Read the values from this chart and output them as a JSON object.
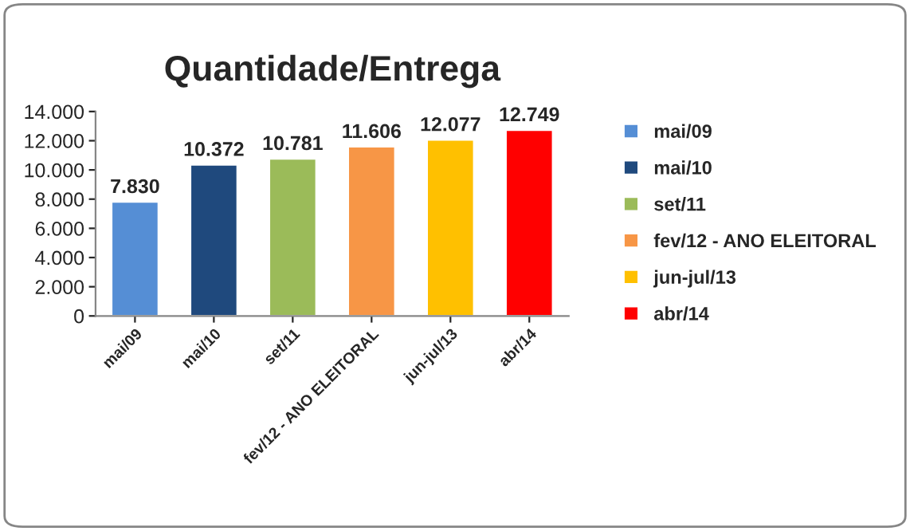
{
  "chart_data": {
    "type": "bar",
    "title": "Quantidade/Entrega",
    "categories": [
      "mai/09",
      "mai/10",
      "set/11",
      "fev/12 - ANO ELEITORAL",
      "jun-jul/13",
      "abr/14"
    ],
    "series": [
      {
        "name": "mai/09",
        "color": "#558ed5",
        "values": [
          7830,
          null,
          null,
          null,
          null,
          null
        ],
        "value_labels": [
          "7.830",
          null,
          null,
          null,
          null,
          null
        ]
      },
      {
        "name": "mai/10",
        "color": "#1f497d",
        "values": [
          null,
          10372,
          null,
          null,
          null,
          null
        ],
        "value_labels": [
          null,
          "10.372",
          null,
          null,
          null,
          null
        ]
      },
      {
        "name": "set/11",
        "color": "#9bbb59",
        "values": [
          null,
          null,
          10781,
          null,
          null,
          null
        ],
        "value_labels": [
          null,
          null,
          "10.781",
          null,
          null,
          null
        ]
      },
      {
        "name": "fev/12 - ANO ELEITORAL",
        "color": "#f79646",
        "values": [
          null,
          null,
          null,
          11606,
          null,
          null
        ],
        "value_labels": [
          null,
          null,
          null,
          "11.606",
          null,
          null
        ]
      },
      {
        "name": "jun-jul/13",
        "color": "#ffc000",
        "values": [
          null,
          null,
          null,
          null,
          12077,
          null
        ],
        "value_labels": [
          null,
          null,
          null,
          null,
          "12.077",
          null
        ]
      },
      {
        "name": "abr/14",
        "color": "#ff0000",
        "values": [
          null,
          null,
          null,
          null,
          null,
          12749
        ],
        "value_labels": [
          null,
          null,
          null,
          null,
          null,
          "12.749"
        ]
      }
    ],
    "ylim": [
      0,
      14000
    ],
    "yticks": [
      {
        "value": 0,
        "label": "0"
      },
      {
        "value": 2000,
        "label": "2.000"
      },
      {
        "value": 4000,
        "label": "4.000"
      },
      {
        "value": 6000,
        "label": "6.000"
      },
      {
        "value": 8000,
        "label": "8.000"
      },
      {
        "value": 10000,
        "label": "10.000"
      },
      {
        "value": 12000,
        "label": "12.000"
      },
      {
        "value": 14000,
        "label": "14.000"
      }
    ],
    "legend": "right"
  }
}
